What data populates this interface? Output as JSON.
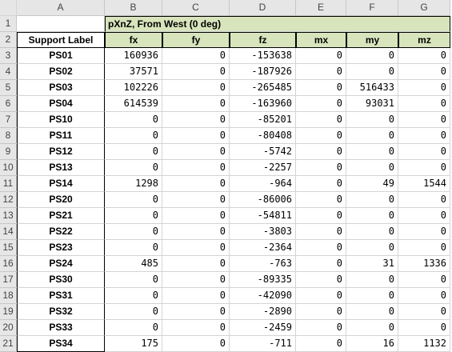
{
  "column_letters": [
    "A",
    "B",
    "C",
    "D",
    "E",
    "F",
    "G"
  ],
  "header_title": "pXnZ, From West (0 deg)",
  "support_label_header": "Support Label",
  "component_headers": [
    "fx",
    "fy",
    "fz",
    "mx",
    "my",
    "mz"
  ],
  "rows": [
    {
      "num": "3",
      "label": "PS01",
      "values": [
        "160936",
        "0",
        "-153638",
        "0",
        "0",
        "0"
      ]
    },
    {
      "num": "4",
      "label": "PS02",
      "values": [
        "37571",
        "0",
        "-187926",
        "0",
        "0",
        "0"
      ]
    },
    {
      "num": "5",
      "label": "PS03",
      "values": [
        "102226",
        "0",
        "-265485",
        "0",
        "516433",
        "0"
      ]
    },
    {
      "num": "6",
      "label": "PS04",
      "values": [
        "614539",
        "0",
        "-163960",
        "0",
        "93031",
        "0"
      ]
    },
    {
      "num": "7",
      "label": "PS10",
      "values": [
        "0",
        "0",
        "-85201",
        "0",
        "0",
        "0"
      ]
    },
    {
      "num": "8",
      "label": "PS11",
      "values": [
        "0",
        "0",
        "-80408",
        "0",
        "0",
        "0"
      ]
    },
    {
      "num": "9",
      "label": "PS12",
      "values": [
        "0",
        "0",
        "-5742",
        "0",
        "0",
        "0"
      ]
    },
    {
      "num": "10",
      "label": "PS13",
      "values": [
        "0",
        "0",
        "-2257",
        "0",
        "0",
        "0"
      ]
    },
    {
      "num": "11",
      "label": "PS14",
      "values": [
        "1298",
        "0",
        "-964",
        "0",
        "49",
        "1544"
      ]
    },
    {
      "num": "12",
      "label": "PS20",
      "values": [
        "0",
        "0",
        "-86006",
        "0",
        "0",
        "0"
      ]
    },
    {
      "num": "13",
      "label": "PS21",
      "values": [
        "0",
        "0",
        "-54811",
        "0",
        "0",
        "0"
      ]
    },
    {
      "num": "14",
      "label": "PS22",
      "values": [
        "0",
        "0",
        "-3803",
        "0",
        "0",
        "0"
      ]
    },
    {
      "num": "15",
      "label": "PS23",
      "values": [
        "0",
        "0",
        "-2364",
        "0",
        "0",
        "0"
      ]
    },
    {
      "num": "16",
      "label": "PS24",
      "values": [
        "485",
        "0",
        "-763",
        "0",
        "31",
        "1336"
      ]
    },
    {
      "num": "17",
      "label": "PS30",
      "values": [
        "0",
        "0",
        "-89335",
        "0",
        "0",
        "0"
      ]
    },
    {
      "num": "18",
      "label": "PS31",
      "values": [
        "0",
        "0",
        "-42090",
        "0",
        "0",
        "0"
      ]
    },
    {
      "num": "19",
      "label": "PS32",
      "values": [
        "0",
        "0",
        "-2890",
        "0",
        "0",
        "0"
      ]
    },
    {
      "num": "20",
      "label": "PS33",
      "values": [
        "0",
        "0",
        "-2459",
        "0",
        "0",
        "0"
      ]
    },
    {
      "num": "21",
      "label": "PS34",
      "values": [
        "175",
        "0",
        "-711",
        "0",
        "16",
        "1132"
      ]
    }
  ],
  "header_row_numbers": [
    "1",
    "2"
  ],
  "colors": {
    "header_fill": "#d8e4bc",
    "gridline": "#d4d4d4",
    "heading_bg": "#e6e6e6"
  }
}
